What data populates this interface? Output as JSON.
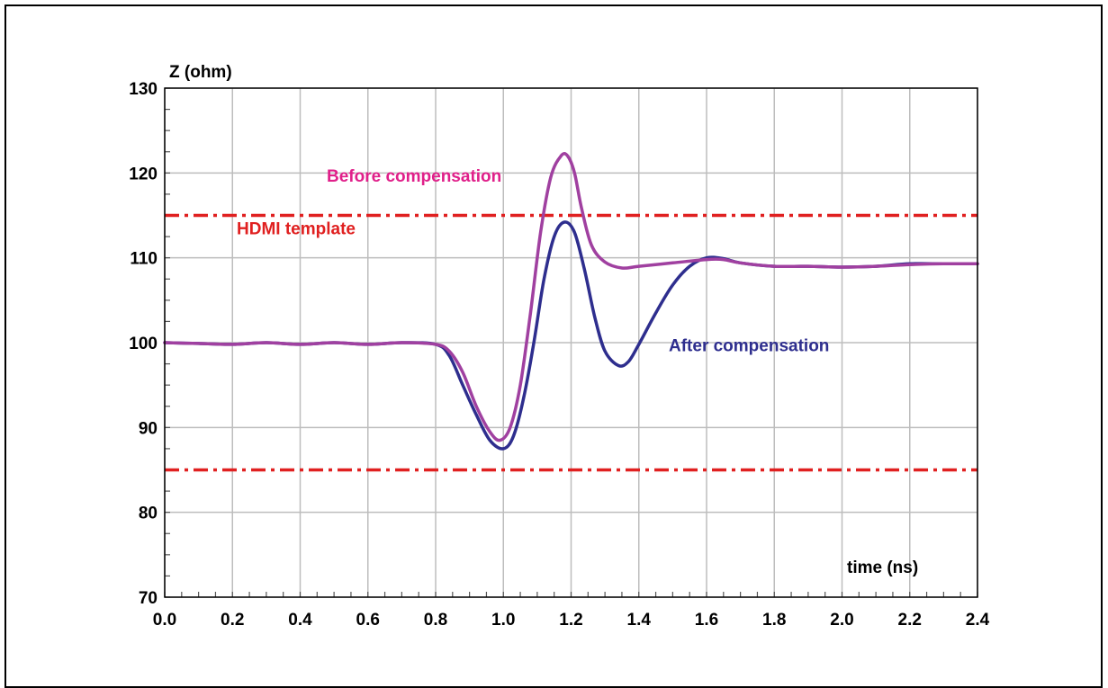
{
  "chart_data": {
    "type": "line",
    "title": "",
    "xlabel": "time (ns)",
    "ylabel": "Z (ohm)",
    "xlim": [
      0,
      2.4
    ],
    "ylim": [
      70,
      130
    ],
    "x_ticks": [
      "0.0",
      "0.2",
      "0.4",
      "0.6",
      "0.8",
      "1.0",
      "1.2",
      "1.4",
      "1.6",
      "1.8",
      "2.0",
      "2.2",
      "2.4"
    ],
    "y_ticks": [
      "70",
      "80",
      "90",
      "100",
      "110",
      "120",
      "130"
    ],
    "grid": true,
    "series": [
      {
        "name": "Before compensation",
        "color": "#a040a0",
        "x": [
          0,
          0.1,
          0.2,
          0.3,
          0.4,
          0.5,
          0.6,
          0.7,
          0.8,
          0.84,
          0.88,
          0.92,
          0.96,
          0.99,
          1.02,
          1.05,
          1.08,
          1.11,
          1.14,
          1.17,
          1.19,
          1.21,
          1.23,
          1.26,
          1.3,
          1.35,
          1.4,
          1.5,
          1.6,
          1.65,
          1.7,
          1.8,
          1.9,
          2.0,
          2.1,
          2.2,
          2.3,
          2.4
        ],
        "y": [
          100,
          99.9,
          99.8,
          100.0,
          99.8,
          100.0,
          99.8,
          100.0,
          99.8,
          99.0,
          96.5,
          92.5,
          89.5,
          88.5,
          90.0,
          95.0,
          103.5,
          113.0,
          119.5,
          122.0,
          122.0,
          120.0,
          116.0,
          111.5,
          109.5,
          108.8,
          109.0,
          109.4,
          109.8,
          109.8,
          109.4,
          109.0,
          109.0,
          108.9,
          109.0,
          109.2,
          109.3,
          109.3
        ]
      },
      {
        "name": "After compensation",
        "color": "#2e2e8e",
        "x": [
          0,
          0.1,
          0.2,
          0.3,
          0.4,
          0.5,
          0.6,
          0.7,
          0.8,
          0.84,
          0.88,
          0.92,
          0.96,
          1.0,
          1.03,
          1.06,
          1.09,
          1.12,
          1.15,
          1.18,
          1.21,
          1.24,
          1.27,
          1.3,
          1.34,
          1.37,
          1.4,
          1.45,
          1.5,
          1.55,
          1.6,
          1.65,
          1.7,
          1.8,
          1.9,
          2.0,
          2.1,
          2.2,
          2.3,
          2.4
        ],
        "y": [
          100,
          99.9,
          99.8,
          100.0,
          99.8,
          100.0,
          99.8,
          100.0,
          99.8,
          98.5,
          95.0,
          91.5,
          88.5,
          87.5,
          89.0,
          93.5,
          100.0,
          107.5,
          112.5,
          114.2,
          113.0,
          108.5,
          103.0,
          99.0,
          97.3,
          97.8,
          99.8,
          103.5,
          106.8,
          109.0,
          110.0,
          109.9,
          109.4,
          109.0,
          109.0,
          108.9,
          109.0,
          109.3,
          109.3,
          109.3
        ]
      }
    ],
    "reference_lines": [
      {
        "name": "HDMI template",
        "y": 115,
        "color": "#e02020",
        "style": "dash-dot"
      },
      {
        "name": "",
        "y": 85,
        "color": "#e02020",
        "style": "dash-dot"
      }
    ],
    "annotations": [
      {
        "text": "Before compensation",
        "color": "#e0208a"
      },
      {
        "text": "HDMI template",
        "color": "#e02020"
      },
      {
        "text": "After compensation",
        "color": "#2e2e8e"
      }
    ]
  }
}
